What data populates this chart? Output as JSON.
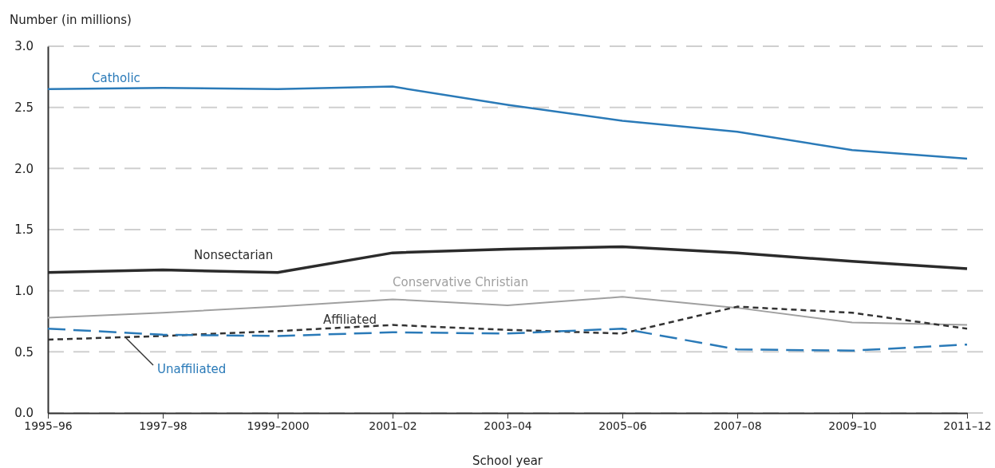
{
  "chart_data": {
    "type": "line",
    "ylabel": "Number (in millions)",
    "xlabel": "School year",
    "categories": [
      "1995–96",
      "1997–98",
      "1999–2000",
      "2001–02",
      "2003–04",
      "2005–06",
      "2007–08",
      "2009–10",
      "2011–12"
    ],
    "ylim": [
      0,
      3
    ],
    "yticks": [
      {
        "value": 0,
        "label": "0.0"
      },
      0.5,
      {
        "value": 1,
        "label": "1.0"
      },
      1.5,
      {
        "value": 2,
        "label": "2.0"
      },
      2.5,
      {
        "value": 3,
        "label": "3.0"
      }
    ],
    "grid": "y",
    "legend": false,
    "marker": "none",
    "series": [
      {
        "name": "Catholic",
        "color": "#2a7ab8",
        "line_style": "solid",
        "values": [
          2.65,
          2.66,
          2.65,
          2.67,
          2.52,
          2.39,
          2.3,
          2.15,
          2.08
        ]
      },
      {
        "name": "Nonsectarian",
        "color": "#2b2b2b",
        "line_style": "solid",
        "values": [
          1.15,
          1.17,
          1.15,
          1.31,
          1.34,
          1.36,
          1.31,
          1.24,
          1.18
        ]
      },
      {
        "name": "Conservative Christian",
        "color": "#a0a0a0",
        "line_style": "solid",
        "values": [
          0.78,
          0.82,
          0.87,
          0.93,
          0.88,
          0.95,
          0.86,
          0.74,
          0.72
        ]
      },
      {
        "name": "Affiliated",
        "color": "#333333",
        "line_style": "dashed",
        "values": [
          0.6,
          0.63,
          0.67,
          0.72,
          0.68,
          0.65,
          0.87,
          0.82,
          0.69
        ]
      },
      {
        "name": "Unaffiliated",
        "color": "#2a7ab8",
        "line_style": "longdash",
        "values": [
          0.69,
          0.64,
          0.63,
          0.66,
          0.65,
          0.69,
          0.52,
          0.51,
          0.56
        ]
      }
    ]
  }
}
